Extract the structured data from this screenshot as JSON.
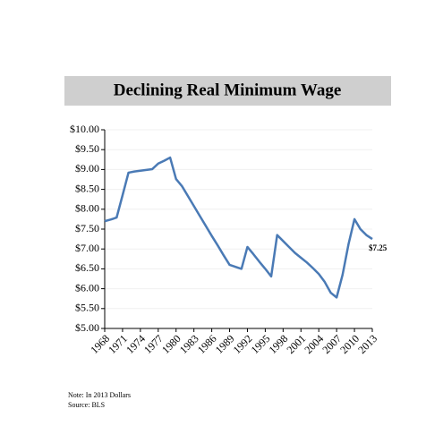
{
  "chart_data": {
    "type": "line",
    "title": "Declining Real Minimum Wage",
    "x": [
      1968,
      1969,
      1970,
      1971,
      1972,
      1973,
      1974,
      1975,
      1976,
      1977,
      1978,
      1979,
      1980,
      1981,
      1982,
      1983,
      1984,
      1985,
      1986,
      1987,
      1988,
      1989,
      1990,
      1991,
      1992,
      1993,
      1994,
      1995,
      1996,
      1997,
      1998,
      1999,
      2000,
      2001,
      2002,
      2003,
      2004,
      2005,
      2006,
      2007,
      2008,
      2009,
      2010,
      2011,
      2012,
      2013
    ],
    "values": [
      7.7,
      7.74,
      7.79,
      8.35,
      8.92,
      8.95,
      8.97,
      8.99,
      9.01,
      9.15,
      9.22,
      9.3,
      8.76,
      8.58,
      8.33,
      8.08,
      7.83,
      7.58,
      7.33,
      7.09,
      6.84,
      6.6,
      6.55,
      6.5,
      7.05,
      6.87,
      6.68,
      6.5,
      6.31,
      7.35,
      7.2,
      7.05,
      6.9,
      6.78,
      6.66,
      6.52,
      6.37,
      6.17,
      5.9,
      5.78,
      6.35,
      7.12,
      7.75,
      7.5,
      7.35,
      7.25
    ],
    "color": "#4a7ab5",
    "annotation": "$7.25",
    "xlim": [
      1968,
      2013
    ],
    "xticks": [
      1968,
      1971,
      1974,
      1977,
      1980,
      1983,
      1986,
      1989,
      1992,
      1995,
      1998,
      2001,
      2004,
      2007,
      2010,
      2013
    ],
    "ylim": [
      5,
      10
    ],
    "yticks": [
      {
        "value": 5,
        "label": "$5.00"
      },
      {
        "value": 5.5,
        "label": "$5.50"
      },
      {
        "value": 6,
        "label": "$6.00"
      },
      {
        "value": 6.5,
        "label": "$6.50"
      },
      {
        "value": 7,
        "label": "$7.00"
      },
      {
        "value": 7.5,
        "label": "$7.50"
      },
      {
        "value": 8,
        "label": "$8.00"
      },
      {
        "value": 8.5,
        "label": "$8.50"
      },
      {
        "value": 9,
        "label": "$9.00"
      },
      {
        "value": 9.5,
        "label": "$9.50"
      },
      {
        "value": 10,
        "label": "$10.00"
      }
    ],
    "grid": true,
    "note": "Note: In 2013 Dollars",
    "source": "Source: BLS"
  }
}
